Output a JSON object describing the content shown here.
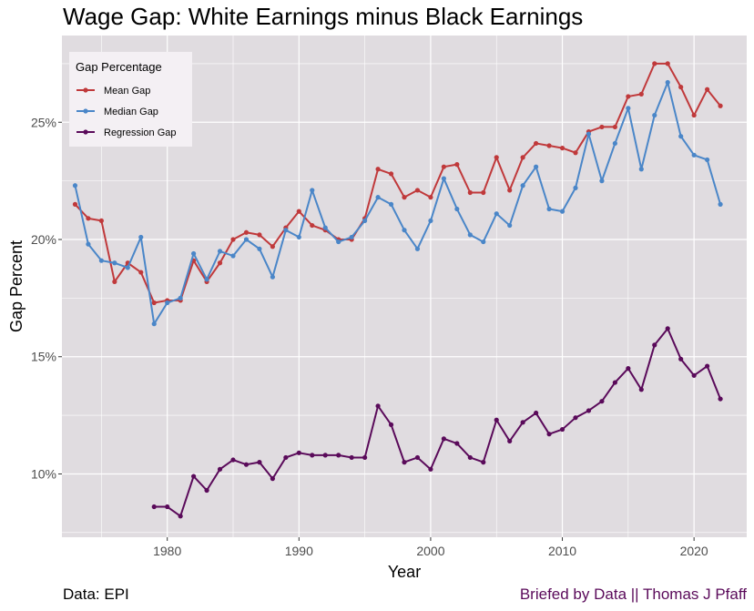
{
  "title": "Wage Gap: White Earnings minus Black Earnings",
  "caption_left": "Data: EPI",
  "caption_right": "Briefed by Data || Thomas J Pfaff",
  "caption_right_color": "#5a0a5a",
  "chart_data": {
    "type": "line",
    "xlabel": "Year",
    "ylabel": "Gap Percent",
    "xlim": [
      1972,
      2024
    ],
    "ylim": [
      7.3,
      28.7
    ],
    "x_ticks": [
      1980,
      1990,
      2000,
      2010,
      2020
    ],
    "x_tick_labels": [
      "1980",
      "1990",
      "2000",
      "2010",
      "2020"
    ],
    "y_ticks": [
      10,
      15,
      20,
      25
    ],
    "y_tick_labels": [
      "10%",
      "15%",
      "20%",
      "25%"
    ],
    "grid": true,
    "panel_color": "#e0dce0",
    "grid_color": "#ffffff",
    "legend": {
      "title": "Gap Percentage",
      "position": "top-left",
      "background": "#f4f0f4"
    },
    "series": [
      {
        "name": "Mean Gap",
        "color": "#c0393b",
        "x": [
          1973,
          1974,
          1975,
          1976,
          1977,
          1978,
          1979,
          1980,
          1981,
          1982,
          1983,
          1984,
          1985,
          1986,
          1987,
          1988,
          1989,
          1990,
          1991,
          1992,
          1993,
          1994,
          1995,
          1996,
          1997,
          1998,
          1999,
          2000,
          2001,
          2002,
          2003,
          2004,
          2005,
          2006,
          2007,
          2008,
          2009,
          2010,
          2011,
          2012,
          2013,
          2014,
          2015,
          2016,
          2017,
          2018,
          2019,
          2020,
          2021,
          2022
        ],
        "values": [
          21.5,
          20.9,
          20.8,
          18.2,
          19.0,
          18.6,
          17.3,
          17.4,
          17.4,
          19.1,
          18.2,
          19.0,
          20.0,
          20.3,
          20.2,
          19.7,
          20.5,
          21.2,
          20.6,
          20.4,
          20.0,
          20.0,
          20.9,
          23.0,
          22.8,
          21.8,
          22.1,
          21.8,
          23.1,
          23.2,
          22.0,
          22.0,
          23.5,
          22.1,
          23.5,
          24.1,
          24.0,
          23.9,
          23.7,
          24.6,
          24.8,
          24.8,
          26.1,
          26.2,
          27.5,
          27.5,
          26.5,
          25.3,
          26.4,
          25.7
        ]
      },
      {
        "name": "Median Gap",
        "color": "#4a86c8",
        "x": [
          1973,
          1974,
          1975,
          1976,
          1977,
          1978,
          1979,
          1980,
          1981,
          1982,
          1983,
          1984,
          1985,
          1986,
          1987,
          1988,
          1989,
          1990,
          1991,
          1992,
          1993,
          1994,
          1995,
          1996,
          1997,
          1998,
          1999,
          2000,
          2001,
          2002,
          2003,
          2004,
          2005,
          2006,
          2007,
          2008,
          2009,
          2010,
          2011,
          2012,
          2013,
          2014,
          2015,
          2016,
          2017,
          2018,
          2019,
          2020,
          2021,
          2022
        ],
        "values": [
          22.3,
          19.8,
          19.1,
          19.0,
          18.8,
          20.1,
          16.4,
          17.3,
          17.5,
          19.4,
          18.3,
          19.5,
          19.3,
          20.0,
          19.6,
          18.4,
          20.4,
          20.1,
          22.1,
          20.5,
          19.9,
          20.1,
          20.8,
          21.8,
          21.5,
          20.4,
          19.6,
          20.8,
          22.6,
          21.3,
          20.2,
          19.9,
          21.1,
          20.6,
          22.3,
          23.1,
          21.3,
          21.2,
          22.2,
          24.5,
          22.5,
          24.1,
          25.6,
          23.0,
          25.3,
          26.7,
          24.4,
          23.6,
          23.4,
          21.5
        ]
      },
      {
        "name": "Regression Gap",
        "color": "#5a0a5a",
        "x": [
          1979,
          1980,
          1981,
          1982,
          1983,
          1984,
          1985,
          1986,
          1987,
          1988,
          1989,
          1990,
          1991,
          1992,
          1993,
          1994,
          1995,
          1996,
          1997,
          1998,
          1999,
          2000,
          2001,
          2002,
          2003,
          2004,
          2005,
          2006,
          2007,
          2008,
          2009,
          2010,
          2011,
          2012,
          2013,
          2014,
          2015,
          2016,
          2017,
          2018,
          2019,
          2020,
          2021,
          2022
        ],
        "values": [
          8.6,
          8.6,
          8.2,
          9.9,
          9.3,
          10.2,
          10.6,
          10.4,
          10.5,
          9.8,
          10.7,
          10.9,
          10.8,
          10.8,
          10.8,
          10.7,
          10.7,
          12.9,
          12.1,
          10.5,
          10.7,
          10.2,
          11.5,
          11.3,
          10.7,
          10.5,
          12.3,
          11.4,
          12.2,
          12.6,
          11.7,
          11.9,
          12.4,
          12.7,
          13.1,
          13.9,
          14.5,
          13.6,
          15.5,
          16.2,
          14.9,
          14.2,
          14.6,
          13.2
        ]
      }
    ]
  }
}
